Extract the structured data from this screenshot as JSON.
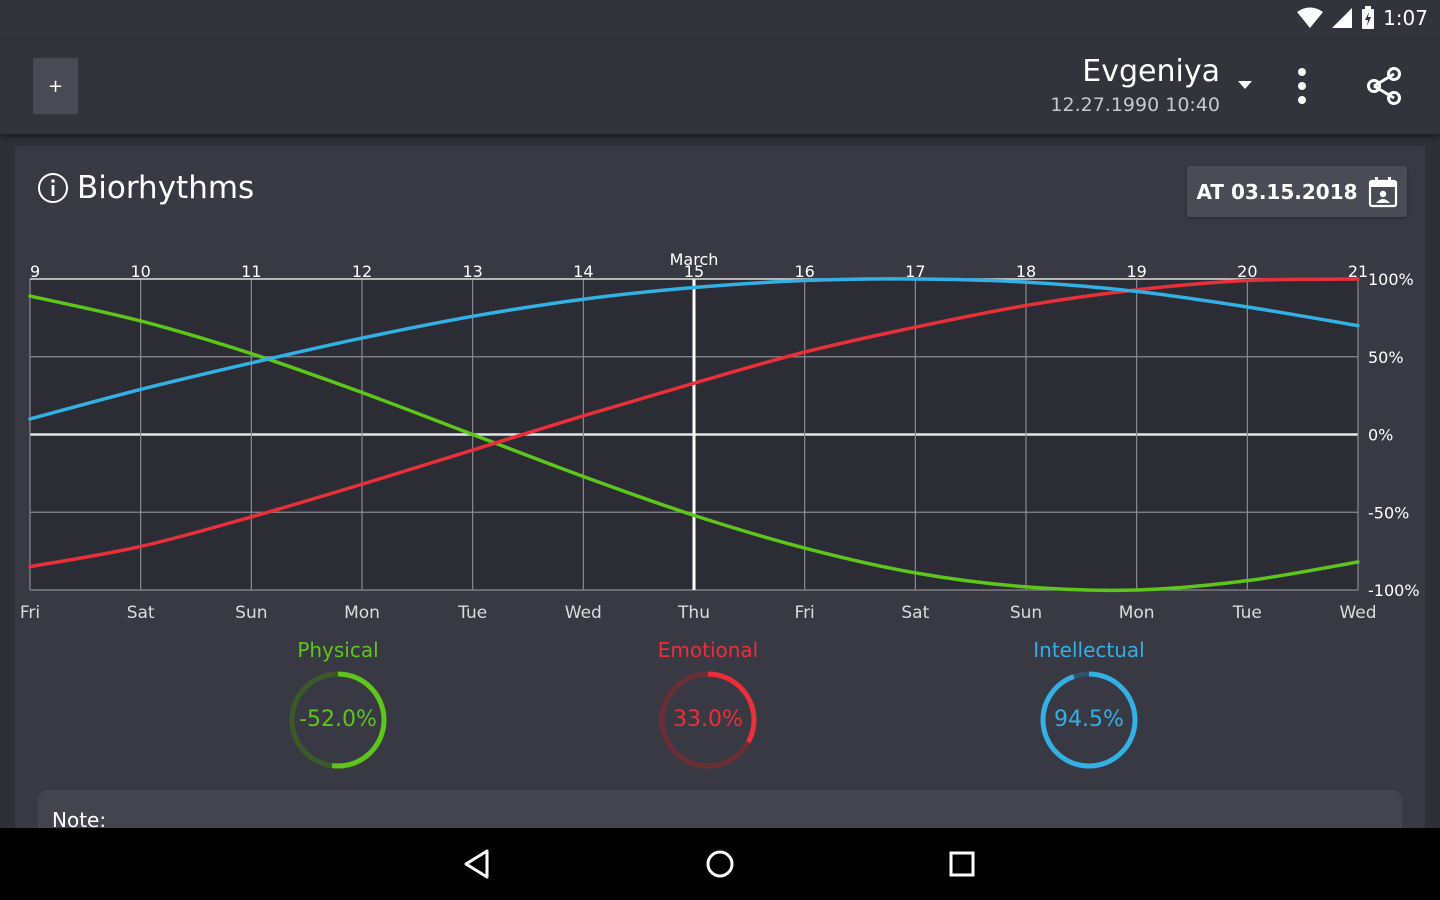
{
  "status": {
    "time": "1:07"
  },
  "appbar": {
    "add_label": "+",
    "profile_name": "Evgeniya",
    "profile_date": "12.27.1990 10:40"
  },
  "card": {
    "title": "Biorhythms",
    "date_button": "AT 03.15.2018"
  },
  "chart_data": {
    "type": "line",
    "month_label": "March",
    "top_labels": [
      "9",
      "10",
      "11",
      "12",
      "13",
      "14",
      "15",
      "16",
      "17",
      "18",
      "19",
      "20",
      "21"
    ],
    "weekday_labels": [
      "Fri",
      "Sat",
      "Sun",
      "Mon",
      "Tue",
      "Wed",
      "Thu",
      "Fri",
      "Sat",
      "Sun",
      "Mon",
      "Tue",
      "Wed"
    ],
    "current_index": 6,
    "y_ticks": [
      "100%",
      "50%",
      "0%",
      "-50%",
      "-100%"
    ],
    "ylim": [
      -100,
      100
    ],
    "series": [
      {
        "name": "Physical",
        "color": "#5ec51b",
        "values": [
          89,
          73,
          52,
          27,
          0,
          -27,
          -52,
          -73,
          -89,
          -98,
          -100,
          -94,
          -82
        ]
      },
      {
        "name": "Emotional",
        "color": "#e8303a",
        "values": [
          -85,
          -72,
          -53,
          -32,
          -10,
          12,
          33,
          53,
          69,
          83,
          93,
          99,
          100
        ]
      },
      {
        "name": "Intellectual",
        "color": "#33b0e4",
        "values": [
          10,
          29,
          46,
          62,
          76,
          87,
          94.5,
          99,
          100,
          98,
          92,
          82,
          70
        ]
      }
    ]
  },
  "gauges": [
    {
      "label": "Physical",
      "value_text": "-52.0%",
      "fraction": 0.52,
      "color": "#5ec51b",
      "track": "#3b5a2b"
    },
    {
      "label": "Emotional",
      "value_text": "33.0%",
      "fraction": 0.33,
      "color": "#e8303a",
      "track": "#6a2f35"
    },
    {
      "label": "Intellectual",
      "value_text": "94.5%",
      "fraction": 0.945,
      "color": "#33b0e4",
      "track": "#2d5468"
    }
  ],
  "note": {
    "label": "Note:"
  }
}
